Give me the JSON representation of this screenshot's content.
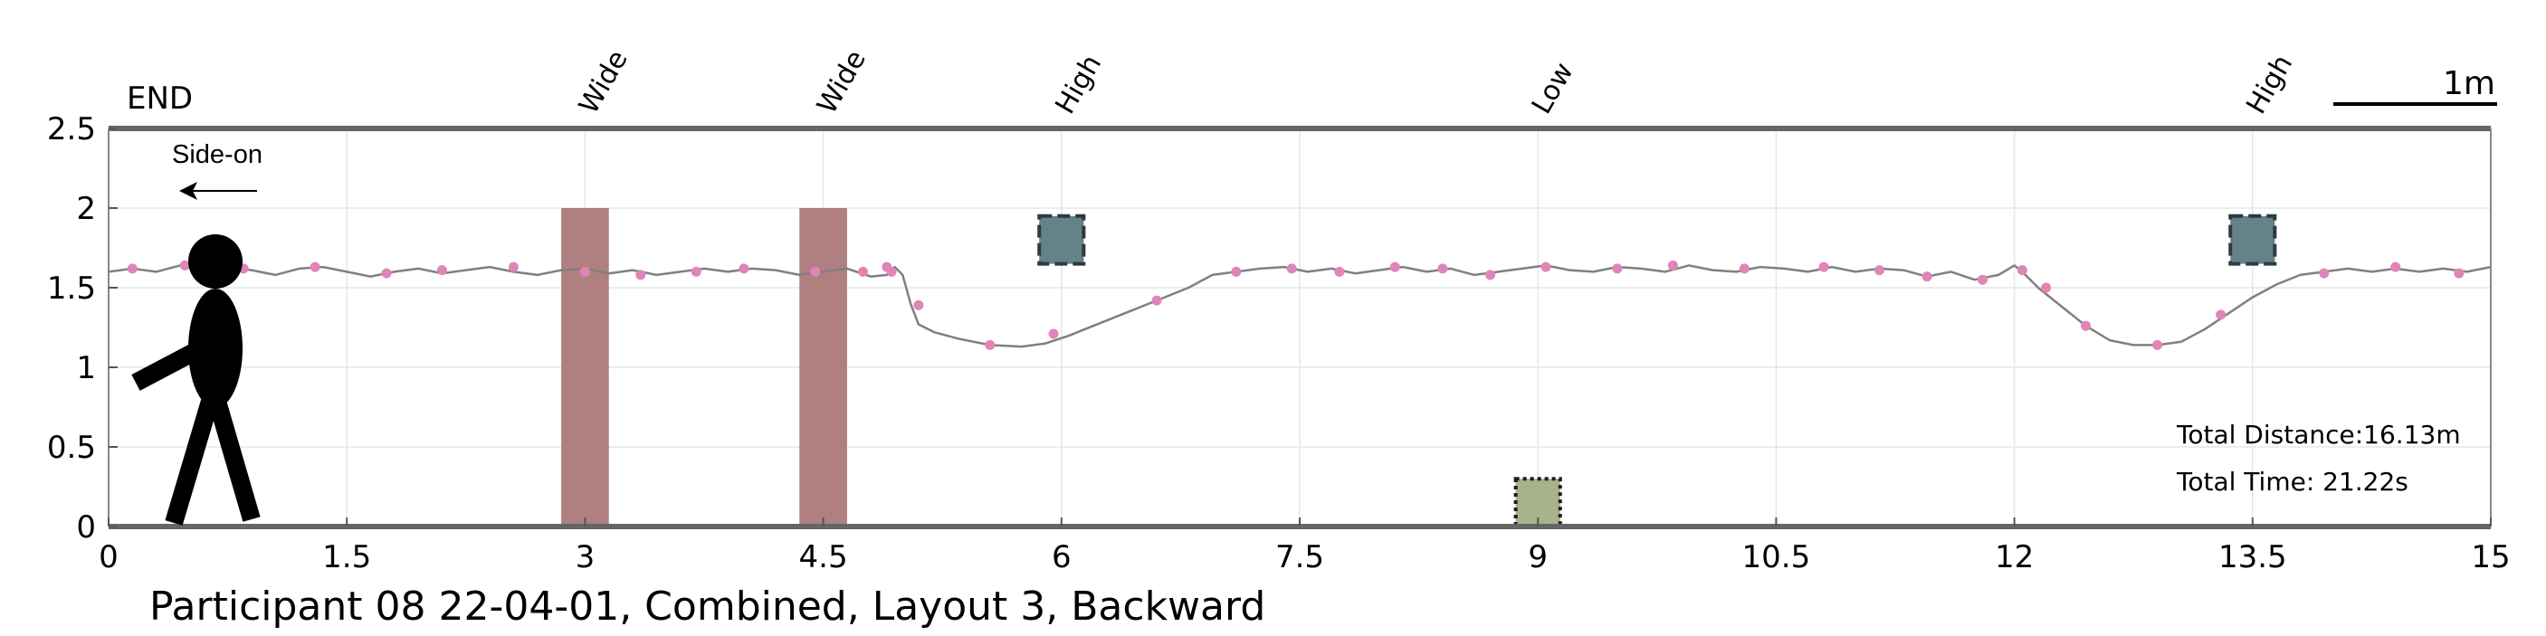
{
  "chart_data": {
    "type": "line",
    "title": "Participant 08 22-04-01, Combined, Layout 3, Backward",
    "xlabel": "",
    "ylabel": "",
    "xlim": [
      0,
      15
    ],
    "ylim": [
      0,
      2.5
    ],
    "x_ticks": [
      "0",
      "1.5",
      "3",
      "4.5",
      "6",
      "7.5",
      "9",
      "10.5",
      "12",
      "13.5",
      "15"
    ],
    "x_tick_values": [
      0,
      1.5,
      3,
      4.5,
      6,
      7.5,
      9,
      10.5,
      12,
      13.5,
      15
    ],
    "y_ticks": [
      "0",
      "0.5",
      "1",
      "1.5",
      "2",
      "2.5"
    ],
    "y_tick_values": [
      0,
      0.5,
      1,
      1.5,
      2,
      2.5
    ],
    "grid": true,
    "end_label": "END",
    "scale_bar_label": "1m",
    "view_label": "Side-on",
    "walk_direction": "left",
    "annotations": {
      "total_distance": "Total Distance:16.13m",
      "total_time": "Total Time: 21.22s"
    },
    "obstacle_labels": [
      {
        "text": "Wide",
        "x": 3.0
      },
      {
        "text": "Wide",
        "x": 4.5
      },
      {
        "text": "High",
        "x": 6.0
      },
      {
        "text": "Low",
        "x": 9.0
      },
      {
        "text": "High",
        "x": 13.5
      }
    ],
    "obstacles": [
      {
        "kind": "wide",
        "x0": 2.85,
        "x1": 3.15,
        "y0": 0,
        "y1": 2.0,
        "color": "#b07f7f"
      },
      {
        "kind": "wide",
        "x0": 4.35,
        "x1": 4.65,
        "y0": 0,
        "y1": 2.0,
        "color": "#b07f7f"
      },
      {
        "kind": "high",
        "x0": 5.86,
        "x1": 6.14,
        "y0": 1.65,
        "y1": 1.95,
        "color": "#65818a"
      },
      {
        "kind": "low",
        "x0": 8.86,
        "x1": 9.14,
        "y0": 0,
        "y1": 0.3,
        "color": "#a7b38a"
      },
      {
        "kind": "high",
        "x0": 13.36,
        "x1": 13.64,
        "y0": 1.65,
        "y1": 1.95,
        "color": "#65818a"
      }
    ],
    "series": [
      {
        "line_color": "#808080",
        "marker_color": "#e085b8",
        "x": [
          0.0,
          0.15,
          0.3,
          0.45,
          0.6,
          0.75,
          0.9,
          1.05,
          1.2,
          1.35,
          1.5,
          1.65,
          1.8,
          1.95,
          2.1,
          2.25,
          2.4,
          2.55,
          2.7,
          2.85,
          3.0,
          3.15,
          3.3,
          3.45,
          3.6,
          3.75,
          3.9,
          4.05,
          4.2,
          4.35,
          4.5,
          4.65,
          4.8,
          4.9,
          4.95,
          5.0,
          5.05,
          5.1,
          5.2,
          5.35,
          5.55,
          5.75,
          5.9,
          6.05,
          6.2,
          6.4,
          6.6,
          6.8,
          6.95,
          7.1,
          7.25,
          7.4,
          7.55,
          7.7,
          7.85,
          8.0,
          8.15,
          8.3,
          8.45,
          8.6,
          8.75,
          8.9,
          9.05,
          9.2,
          9.35,
          9.5,
          9.65,
          9.8,
          9.95,
          10.1,
          10.25,
          10.4,
          10.55,
          10.7,
          10.85,
          11.0,
          11.15,
          11.3,
          11.45,
          11.6,
          11.75,
          11.9,
          12.0,
          12.05,
          12.15,
          12.3,
          12.45,
          12.6,
          12.75,
          12.9,
          13.05,
          13.2,
          13.35,
          13.5,
          13.65,
          13.8,
          13.95,
          14.1,
          14.25,
          14.4,
          14.55,
          14.7,
          14.85,
          15.0
        ],
        "y": [
          1.6,
          1.62,
          1.6,
          1.64,
          1.6,
          1.63,
          1.61,
          1.58,
          1.62,
          1.63,
          1.6,
          1.57,
          1.6,
          1.62,
          1.59,
          1.61,
          1.63,
          1.6,
          1.58,
          1.61,
          1.62,
          1.59,
          1.61,
          1.58,
          1.6,
          1.62,
          1.6,
          1.62,
          1.61,
          1.58,
          1.6,
          1.62,
          1.57,
          1.58,
          1.63,
          1.58,
          1.4,
          1.27,
          1.22,
          1.18,
          1.14,
          1.13,
          1.15,
          1.2,
          1.26,
          1.34,
          1.42,
          1.5,
          1.58,
          1.6,
          1.62,
          1.63,
          1.6,
          1.62,
          1.59,
          1.61,
          1.63,
          1.6,
          1.62,
          1.58,
          1.6,
          1.62,
          1.64,
          1.61,
          1.6,
          1.63,
          1.62,
          1.6,
          1.64,
          1.61,
          1.6,
          1.63,
          1.62,
          1.6,
          1.63,
          1.6,
          1.62,
          1.61,
          1.57,
          1.6,
          1.55,
          1.58,
          1.64,
          1.6,
          1.5,
          1.38,
          1.26,
          1.17,
          1.14,
          1.14,
          1.16,
          1.24,
          1.34,
          1.44,
          1.52,
          1.58,
          1.6,
          1.62,
          1.6,
          1.62,
          1.6,
          1.62,
          1.6,
          1.63
        ],
        "marker_x": [
          0.15,
          0.48,
          0.85,
          1.3,
          1.75,
          2.1,
          2.55,
          3.0,
          3.35,
          3.7,
          4.0,
          4.45,
          4.75,
          4.9,
          4.93,
          5.1,
          5.55,
          5.95,
          6.6,
          7.1,
          7.45,
          7.75,
          8.1,
          8.4,
          8.7,
          9.05,
          9.5,
          9.85,
          10.3,
          10.8,
          11.15,
          11.45,
          11.8,
          12.05,
          12.2,
          12.45,
          12.9,
          13.3,
          13.95,
          14.4,
          14.8
        ],
        "marker_y": [
          1.62,
          1.64,
          1.62,
          1.63,
          1.59,
          1.61,
          1.63,
          1.6,
          1.58,
          1.6,
          1.62,
          1.6,
          1.6,
          1.63,
          1.6,
          1.39,
          1.14,
          1.21,
          1.42,
          1.6,
          1.62,
          1.6,
          1.63,
          1.62,
          1.58,
          1.63,
          1.62,
          1.64,
          1.62,
          1.63,
          1.61,
          1.57,
          1.55,
          1.61,
          1.5,
          1.26,
          1.14,
          1.33,
          1.59,
          1.63,
          1.59
        ]
      }
    ]
  }
}
